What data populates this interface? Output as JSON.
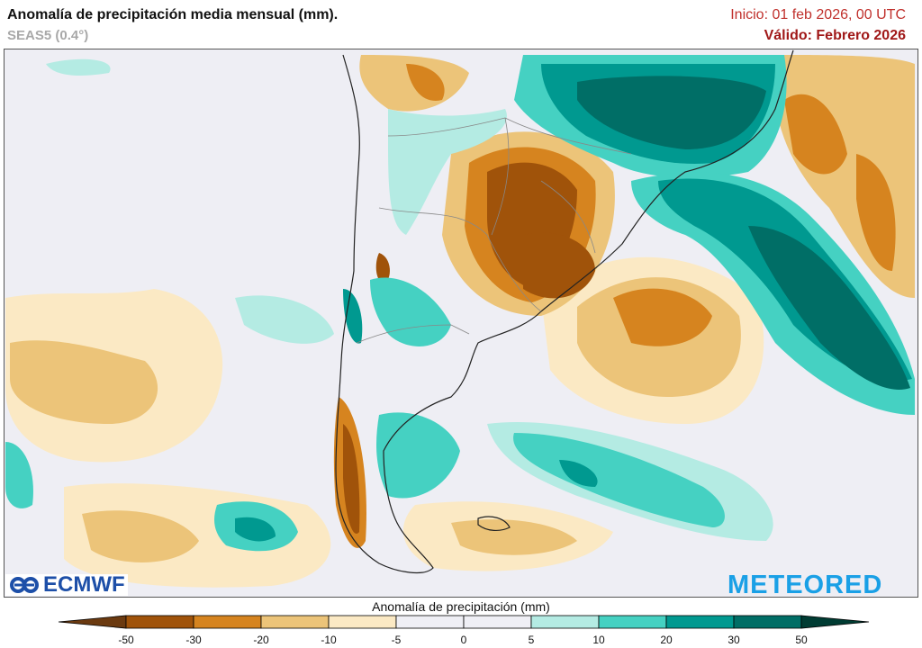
{
  "header": {
    "title": "Anomalía de precipitación media mensual (mm).",
    "model": "SEAS5 (0.4°)",
    "init": "Inicio: 01 feb 2026, 00 UTC",
    "valid": "Válido: Febrero 2026"
  },
  "logos": {
    "left": "ECMWF",
    "right": "METEORED"
  },
  "colorbar": {
    "title": "Anomalía de precipitación (mm)",
    "ticks": [
      "-50",
      "-30",
      "-20",
      "-10",
      "-5",
      "0",
      "5",
      "10",
      "20",
      "30",
      "50"
    ],
    "colors": {
      "below_min": "#6b3a10",
      "bins": [
        "#a0530a",
        "#d6841f",
        "#ecc479",
        "#fbe9c4",
        "#efeff5",
        "#efeff5",
        "#b4ebe3",
        "#45d1c2",
        "#009990",
        "#006e66"
      ],
      "above_max": "#003c33"
    }
  },
  "map": {
    "region": "South America",
    "variable": "precipitation anomaly"
  }
}
